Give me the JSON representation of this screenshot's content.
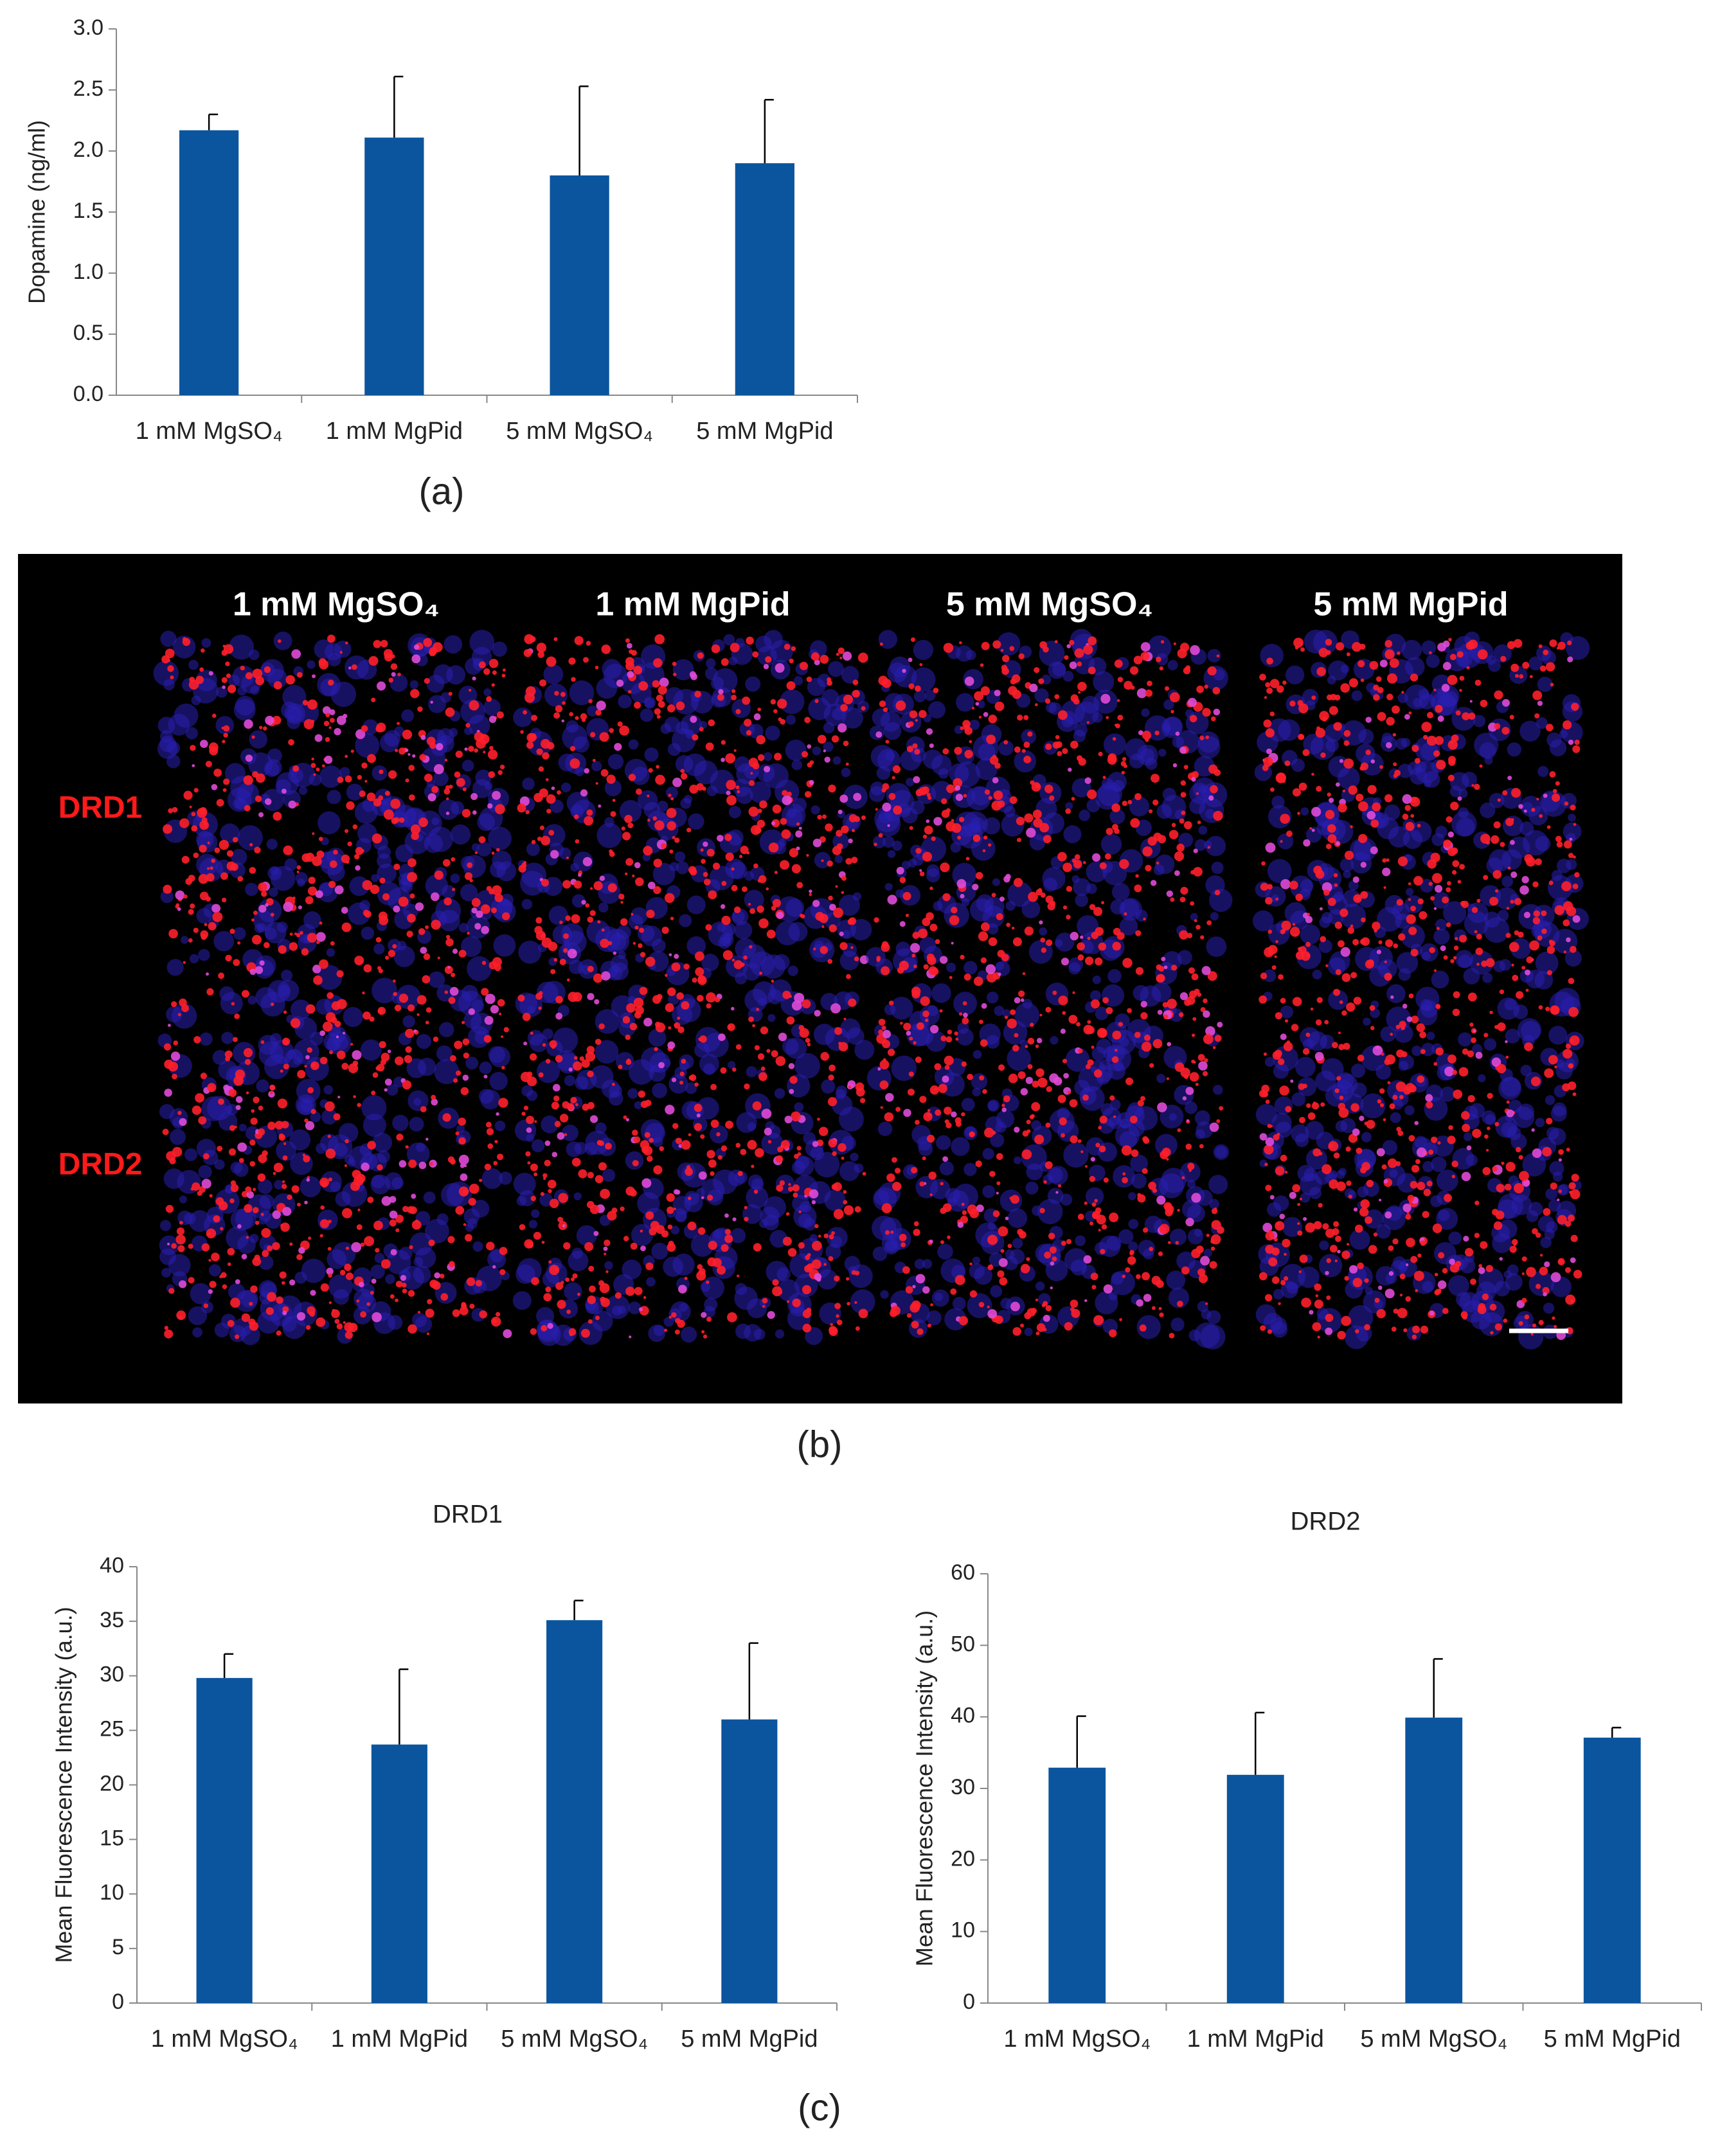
{
  "chart_data": [
    {
      "type": "bar",
      "y_label": "Dopamine (ng/ml)",
      "categories": [
        "1 mM MgSO₄",
        "1 mM MgPid",
        "5 mM MgSO₄",
        "5 mM MgPid"
      ],
      "values": [
        2.17,
        2.11,
        1.8,
        1.9
      ],
      "errors": [
        0.13,
        0.5,
        0.73,
        0.52
      ],
      "color": "#0b559f",
      "ylim": [
        0,
        3
      ],
      "yticks": [
        {
          "value": 0,
          "label": "0.0"
        },
        0.5,
        {
          "value": 1,
          "label": "1.0"
        },
        1.5,
        {
          "value": 2,
          "label": "2.0"
        },
        2.5,
        {
          "value": 3,
          "label": "3.0"
        }
      ]
    },
    {
      "type": "bar",
      "title": "DRD1",
      "y_label": "Mean Fluorescence Intensity (a.u.)",
      "categories": [
        "1 mM MgSO₄",
        "1 mM MgPid",
        "5 mM MgSO₄",
        "5 mM MgPid"
      ],
      "values": [
        29.8,
        23.7,
        35.1,
        26.0
      ],
      "errors": [
        2.2,
        6.9,
        1.8,
        7.0
      ],
      "color": "#0b559f",
      "ylim": [
        0,
        40
      ],
      "yticks": [
        0,
        5,
        10,
        15,
        20,
        25,
        30,
        35,
        40
      ]
    },
    {
      "type": "bar",
      "title": "DRD2",
      "y_label": "Mean Fluorescence Intensity (a.u.)",
      "categories": [
        "1 mM MgSO₄",
        "1 mM MgPid",
        "5 mM MgSO₄",
        "5 mM MgPid"
      ],
      "values": [
        32.9,
        31.9,
        39.9,
        37.1
      ],
      "errors": [
        7.2,
        8.7,
        8.2,
        1.4
      ],
      "color": "#0b559f",
      "ylim": [
        0,
        60
      ],
      "yticks": [
        0,
        10,
        20,
        30,
        40,
        50,
        60
      ]
    }
  ],
  "panel_b": {
    "columns": [
      "1 mM MgSO₄",
      "1 mM MgPid",
      "5 mM MgSO₄",
      "5 mM MgPid"
    ],
    "rows": [
      "DRD1",
      "DRD2"
    ]
  },
  "captions": [
    "(a)",
    "(b)",
    "(c)"
  ]
}
